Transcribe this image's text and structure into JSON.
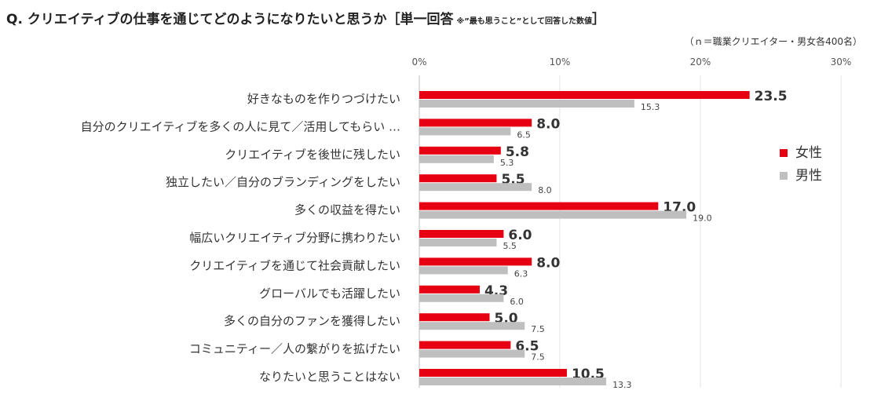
{
  "header": {
    "title": "Q. クリエイティブの仕事を通じてどのようになりたいと思うか［単一回答",
    "note": "※”最も思うこと”として回答した数値",
    "title_close": "］",
    "sample": "（ｎ＝職業クリエイター・男女各400名）"
  },
  "chart_data": {
    "type": "bar",
    "orientation": "horizontal",
    "title": "Q. クリエイティブの仕事を通じてどのようになりたいと思うか［単一回答 ※”最も思うこと”として回答した数値］",
    "categories": [
      "好きなものを作りつづけたい",
      "自分のクリエイティブを多くの人に見て／活用してもらい …",
      "クリエイティブを後世に残したい",
      "独立したい／自分のブランディングをしたい",
      "多くの収益を得たい",
      "幅広いクリエイティブ分野に携わりたい",
      "クリエイティブを通じて社会貢献したい",
      "グローバルでも活躍したい",
      "多くの自分のファンを獲得したい",
      "コミュニティー／人の繋がりを拡げたい",
      "なりたいと思うことはない"
    ],
    "series": [
      {
        "name": "女性",
        "color": "#e60012",
        "values": [
          23.5,
          8.0,
          5.8,
          5.5,
          17.0,
          6.0,
          8.0,
          4.3,
          5.0,
          6.5,
          10.5
        ]
      },
      {
        "name": "男性",
        "color": "#bfbfbf",
        "values": [
          15.3,
          6.5,
          5.3,
          8.0,
          19.0,
          5.5,
          6.3,
          6.0,
          7.5,
          7.5,
          13.3
        ]
      }
    ],
    "xlim": [
      0,
      30
    ],
    "xticks": [
      0,
      10,
      20,
      30
    ],
    "xtick_labels": [
      "0%",
      "10%",
      "20%",
      "30%"
    ],
    "grid": true,
    "legend": "right"
  }
}
